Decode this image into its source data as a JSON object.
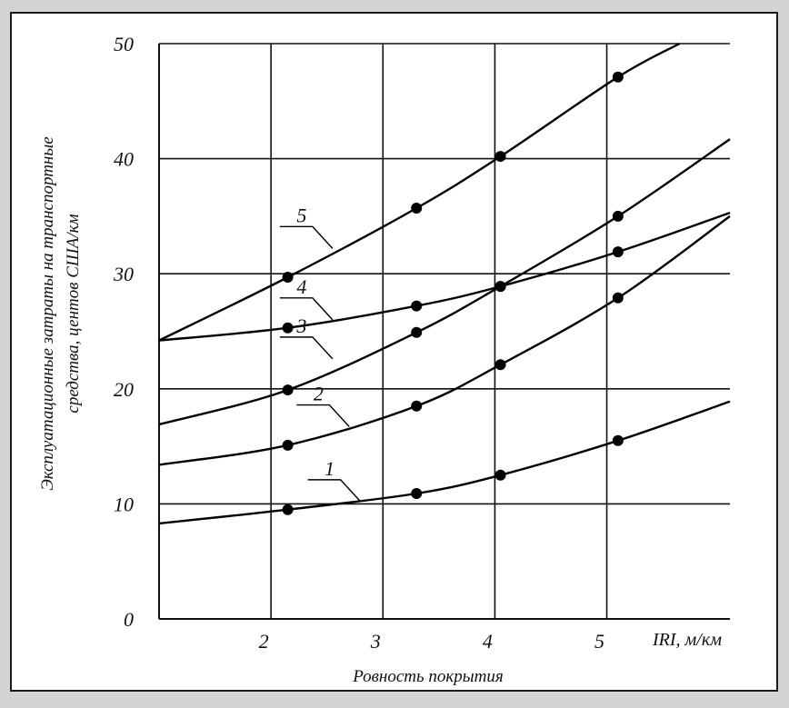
{
  "chart_data": {
    "type": "line",
    "title": "",
    "xlabel": "Ровность покрытия",
    "x_unit_label": "IRI, м/км",
    "ylabel_lines": [
      "Эксплуатационные затраты на транспортные",
      "средства, центов США/км"
    ],
    "xlim": [
      1,
      6.1
    ],
    "ylim": [
      0,
      50
    ],
    "x_ticks": [
      {
        "value": 2,
        "label": "2"
      },
      {
        "value": 3,
        "label": "3"
      },
      {
        "value": 4,
        "label": "4"
      },
      {
        "value": 5,
        "label": "5"
      }
    ],
    "y_ticks": [
      {
        "value": 0,
        "label": "0"
      },
      {
        "value": 10,
        "label": "10"
      },
      {
        "value": 20,
        "label": "20"
      },
      {
        "value": 30,
        "label": "30"
      },
      {
        "value": 40,
        "label": "40"
      },
      {
        "value": 50,
        "label": "50"
      }
    ],
    "grid": true,
    "series": [
      {
        "name": "1",
        "curve": [
          [
            1.0,
            8.3
          ],
          [
            2.15,
            9.5
          ],
          [
            3.3,
            10.9
          ],
          [
            4.05,
            12.5
          ],
          [
            5.1,
            15.5
          ],
          [
            6.1,
            18.9
          ]
        ],
        "markers": [
          [
            2.15,
            9.5
          ],
          [
            3.3,
            10.9
          ],
          [
            4.05,
            12.5
          ],
          [
            5.1,
            15.5
          ]
        ]
      },
      {
        "name": "2",
        "curve": [
          [
            1.0,
            13.4
          ],
          [
            2.15,
            15.1
          ],
          [
            3.3,
            18.5
          ],
          [
            4.05,
            22.1
          ],
          [
            5.1,
            27.9
          ],
          [
            6.1,
            35.0
          ]
        ],
        "markers": [
          [
            2.15,
            15.1
          ],
          [
            3.3,
            18.5
          ],
          [
            4.05,
            22.1
          ],
          [
            5.1,
            27.9
          ]
        ]
      },
      {
        "name": "3",
        "curve": [
          [
            1.0,
            16.9
          ],
          [
            2.15,
            19.9
          ],
          [
            3.3,
            24.9
          ],
          [
            4.05,
            28.9
          ],
          [
            5.1,
            35.0
          ],
          [
            6.1,
            41.7
          ]
        ],
        "markers": [
          [
            2.15,
            19.9
          ],
          [
            3.3,
            24.9
          ],
          [
            4.05,
            28.9
          ],
          [
            5.1,
            35.0
          ]
        ]
      },
      {
        "name": "4",
        "curve": [
          [
            1.0,
            24.2
          ],
          [
            2.15,
            25.3
          ],
          [
            3.3,
            27.2
          ],
          [
            4.05,
            28.9
          ],
          [
            5.1,
            31.9
          ],
          [
            6.1,
            35.3
          ]
        ],
        "markers": [
          [
            2.15,
            25.3
          ],
          [
            3.3,
            27.2
          ],
          [
            4.05,
            28.9
          ],
          [
            5.1,
            31.9
          ]
        ]
      },
      {
        "name": "5",
        "curve": [
          [
            1.0,
            24.2
          ],
          [
            2.15,
            29.7
          ],
          [
            3.3,
            35.7
          ],
          [
            4.05,
            40.2
          ],
          [
            5.1,
            47.1
          ],
          [
            5.65,
            50.0
          ]
        ],
        "markers": [
          [
            2.15,
            29.7
          ],
          [
            3.3,
            35.7
          ],
          [
            4.05,
            40.2
          ],
          [
            5.1,
            47.1
          ]
        ]
      }
    ],
    "curve_labels": [
      {
        "series": "1",
        "text": "1",
        "anchor": [
          2.8,
          10.2
        ]
      },
      {
        "series": "2",
        "text": "2",
        "anchor": [
          2.7,
          16.7
        ]
      },
      {
        "series": "3",
        "text": "3",
        "anchor": [
          2.55,
          22.6
        ]
      },
      {
        "series": "4",
        "text": "4",
        "anchor": [
          2.55,
          26.0
        ]
      },
      {
        "series": "5",
        "text": "5",
        "anchor": [
          2.55,
          32.2
        ]
      }
    ]
  }
}
